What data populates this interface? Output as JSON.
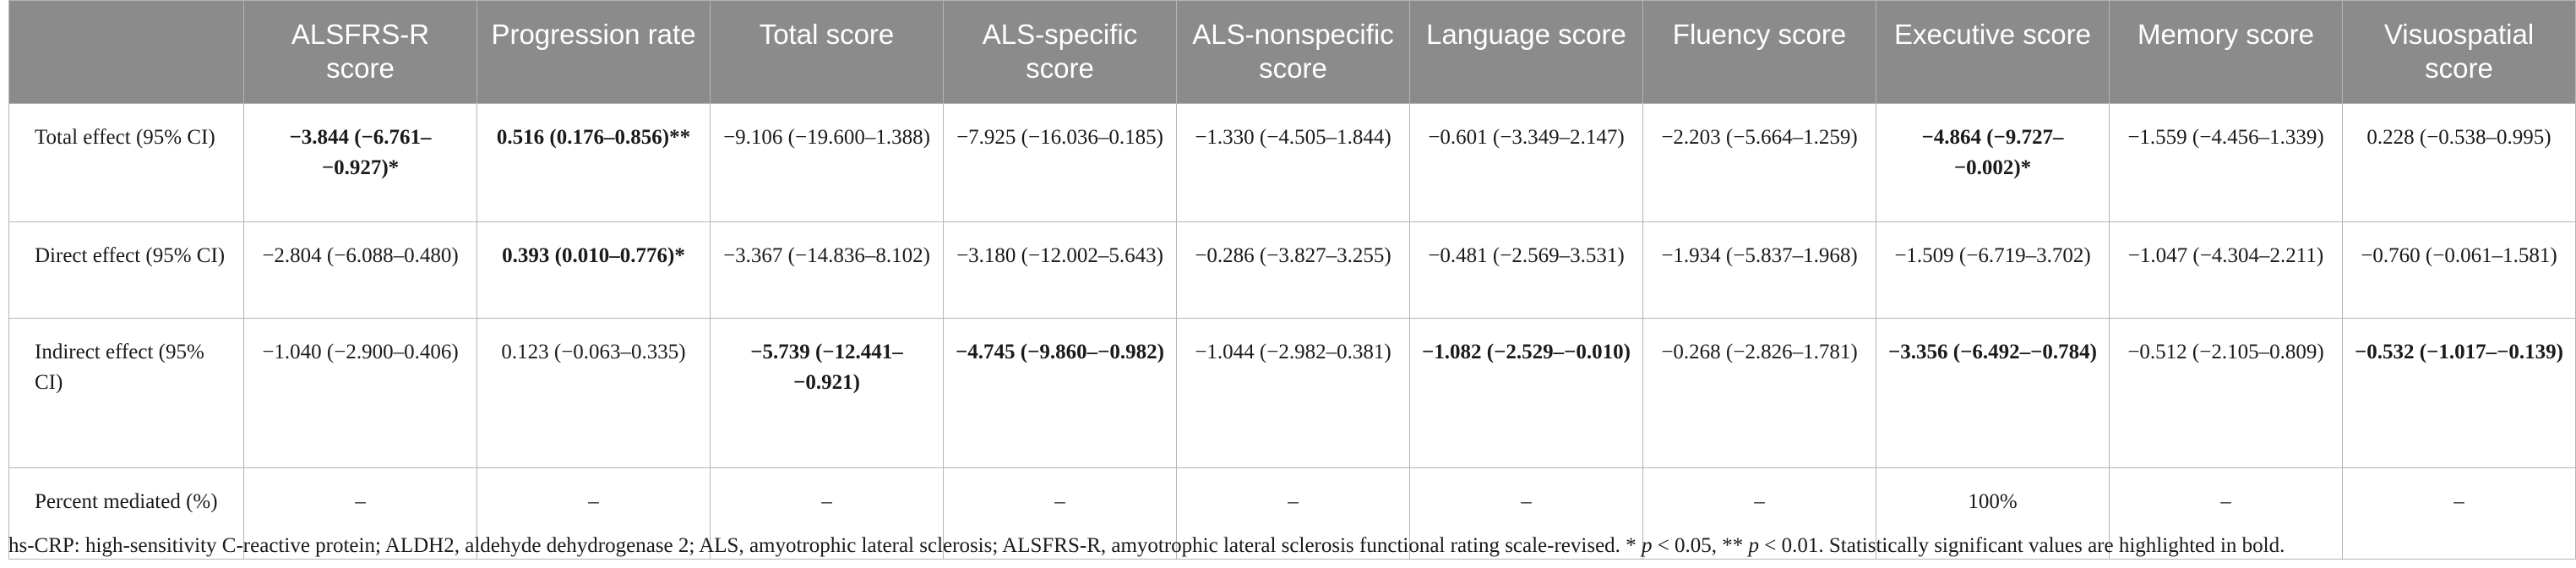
{
  "table": {
    "columns": [
      "ALSFRS-R score",
      "Progression rate",
      "Total score",
      "ALS-specific score",
      "ALS-nonspecific score",
      "Language score",
      "Fluency score",
      "Executive score",
      "Memory score",
      "Visuospatial score"
    ],
    "rows": [
      {
        "label": "Total effect (95% CI)",
        "cells": [
          {
            "text": "−3.844 (−6.761–−0.927)*",
            "bold": true
          },
          {
            "text": "0.516 (0.176–0.856)**",
            "bold": true
          },
          {
            "text": "−9.106 (−19.600–1.388)",
            "bold": false
          },
          {
            "text": "−7.925 (−16.036–0.185)",
            "bold": false
          },
          {
            "text": "−1.330 (−4.505–1.844)",
            "bold": false
          },
          {
            "text": "−0.601 (−3.349–2.147)",
            "bold": false
          },
          {
            "text": "−2.203 (−5.664–1.259)",
            "bold": false
          },
          {
            "text": "−4.864 (−9.727–−0.002)*",
            "bold": true
          },
          {
            "text": "−1.559 (−4.456–1.339)",
            "bold": false
          },
          {
            "text": "0.228 (−0.538–0.995)",
            "bold": false
          }
        ]
      },
      {
        "label": "Direct effect (95% CI)",
        "cells": [
          {
            "text": "−2.804 (−6.088–0.480)",
            "bold": false
          },
          {
            "text": "0.393 (0.010–0.776)*",
            "bold": true
          },
          {
            "text": "−3.367 (−14.836–8.102)",
            "bold": false
          },
          {
            "text": "−3.180 (−12.002–5.643)",
            "bold": false
          },
          {
            "text": "−0.286 (−3.827–3.255)",
            "bold": false
          },
          {
            "text": "−0.481 (−2.569–3.531)",
            "bold": false
          },
          {
            "text": "−1.934 (−5.837–1.968)",
            "bold": false
          },
          {
            "text": "−1.509 (−6.719–3.702)",
            "bold": false
          },
          {
            "text": "−1.047 (−4.304–2.211)",
            "bold": false
          },
          {
            "text": "−0.760 (−0.061–1.581)",
            "bold": false
          }
        ]
      },
      {
        "label": "Indirect effect (95% CI)",
        "cells": [
          {
            "text": "−1.040 (−2.900–0.406)",
            "bold": false
          },
          {
            "text": "0.123 (−0.063–0.335)",
            "bold": false
          },
          {
            "text": "−5.739 (−12.441–−0.921)",
            "bold": true
          },
          {
            "text": "−4.745 (−9.860–−0.982)",
            "bold": true
          },
          {
            "text": "−1.044 (−2.982–0.381)",
            "bold": false
          },
          {
            "text": "−1.082 (−2.529–−0.010)",
            "bold": true
          },
          {
            "text": "−0.268 (−2.826–1.781)",
            "bold": false
          },
          {
            "text": "−3.356 (−6.492–−0.784)",
            "bold": true
          },
          {
            "text": "−0.512 (−2.105–0.809)",
            "bold": false
          },
          {
            "text": "−0.532 (−1.017–−0.139)",
            "bold": true
          }
        ]
      },
      {
        "label": "Percent mediated (%)",
        "cells": [
          {
            "text": "–",
            "bold": false
          },
          {
            "text": "–",
            "bold": false
          },
          {
            "text": "–",
            "bold": false
          },
          {
            "text": "–",
            "bold": false
          },
          {
            "text": "–",
            "bold": false
          },
          {
            "text": "–",
            "bold": false
          },
          {
            "text": "–",
            "bold": false
          },
          {
            "text": "100%",
            "bold": false
          },
          {
            "text": "–",
            "bold": false
          },
          {
            "text": "–",
            "bold": false
          }
        ]
      }
    ]
  },
  "footnote": {
    "abbrev": "hs-CRP: high-sensitivity C-reactive protein; ALDH2, aldehyde dehydrogenase 2; ALS, amyotrophic lateral sclerosis; ALSFRS-R, amyotrophic lateral sclerosis functional rating scale-revised.",
    "sig1_prefix": "* ",
    "p1": "p",
    "sig1_rest": " < 0.05, ** ",
    "p2": "p",
    "sig2_rest": " < 0.01. Statistically significant values are highlighted in bold."
  }
}
